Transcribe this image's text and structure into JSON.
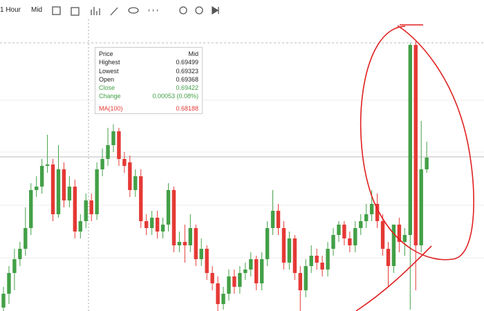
{
  "toolbar": {
    "interval": "1 Hour",
    "price_type": "Mid"
  },
  "tooltip": {
    "rows": [
      {
        "label": "Price",
        "value": "Mid"
      },
      {
        "label": "Highest",
        "value": "0.69499"
      },
      {
        "label": "Lowest",
        "value": "0.69323"
      },
      {
        "label": "Open",
        "value": "0.69368"
      },
      {
        "label": "Close",
        "value": "0.69422"
      },
      {
        "label": "Change",
        "value": "0.00053 (0.08%)"
      },
      {
        "label": "MA(100)",
        "value": "0.68188"
      }
    ]
  },
  "chart_data": {
    "type": "candlestick",
    "up_color": "#43a047",
    "down_color": "#e53935",
    "ylim": [
      0.69197,
      0.69612
    ],
    "open": [
      0.69202,
      0.69222,
      0.69252,
      0.69272,
      0.69287,
      0.69317,
      0.69372,
      0.69377,
      0.69407,
      0.69409,
      0.69337,
      0.69402,
      0.69357,
      0.69377,
      0.69312,
      0.69327,
      0.69357,
      0.69337,
      0.69402,
      0.69417,
      0.69437,
      0.69457,
      0.69417,
      0.69412,
      0.69372,
      0.69392,
      0.69327,
      0.69317,
      0.69332,
      0.69312,
      0.69322,
      0.69372,
      0.69292,
      0.69297,
      0.69292,
      0.69317,
      0.69272,
      0.69287,
      0.69252,
      0.69237,
      0.69207,
      0.69222,
      0.69247,
      0.69232,
      0.69252,
      0.69257,
      0.69272,
      0.69237,
      0.69272,
      0.69317,
      0.69342,
      0.69317,
      0.69267,
      0.69302,
      0.69252,
      0.69227,
      0.69262,
      0.69277,
      0.69267,
      0.69257,
      0.69287,
      0.69307,
      0.69322,
      0.69302,
      0.69292,
      0.69317,
      0.69327,
      0.69337,
      0.69352,
      0.69327,
      0.69287,
      0.69262,
      0.69322,
      0.69297,
      0.69307,
      0.69582,
      0.69292,
      0.69402
    ],
    "high": [
      0.69232,
      0.69262,
      0.69287,
      0.69297,
      0.69347,
      0.69382,
      0.69392,
      0.69417,
      0.69452,
      0.69417,
      0.69437,
      0.69412,
      0.69392,
      0.69387,
      0.69337,
      0.69367,
      0.69367,
      0.69412,
      0.69432,
      0.69462,
      0.69467,
      0.69462,
      0.69427,
      0.69422,
      0.69402,
      0.69402,
      0.69337,
      0.69342,
      0.69342,
      0.69332,
      0.69382,
      0.69377,
      0.69312,
      0.69322,
      0.69337,
      0.69322,
      0.69302,
      0.69292,
      0.69262,
      0.69247,
      0.69232,
      0.69257,
      0.69257,
      0.69262,
      0.69267,
      0.69282,
      0.69277,
      0.69282,
      0.69327,
      0.69372,
      0.69352,
      0.69327,
      0.69312,
      0.69307,
      0.69262,
      0.69272,
      0.69292,
      0.69287,
      0.69277,
      0.69297,
      0.69317,
      0.69327,
      0.69327,
      0.69312,
      0.69327,
      0.69337,
      0.69352,
      0.69372,
      0.69367,
      0.69337,
      0.69297,
      0.69322,
      0.69332,
      0.69317,
      0.69585,
      0.69587,
      0.69472,
      0.69442
    ],
    "low": [
      0.69197,
      0.69207,
      0.69227,
      0.69262,
      0.69277,
      0.69307,
      0.69362,
      0.69367,
      0.69397,
      0.69327,
      0.69332,
      0.69347,
      0.69347,
      0.69302,
      0.69302,
      0.69317,
      0.69327,
      0.69329,
      0.69392,
      0.69407,
      0.69427,
      0.69407,
      0.69397,
      0.69362,
      0.69362,
      0.69317,
      0.69307,
      0.69307,
      0.69302,
      0.69302,
      0.69312,
      0.69282,
      0.69282,
      0.69267,
      0.69282,
      0.69262,
      0.69262,
      0.69242,
      0.69227,
      0.69197,
      0.69199,
      0.69212,
      0.69222,
      0.69222,
      0.69242,
      0.69247,
      0.69227,
      0.69227,
      0.69262,
      0.69307,
      0.69307,
      0.69257,
      0.69257,
      0.69242,
      0.69197,
      0.69217,
      0.69252,
      0.69257,
      0.69247,
      0.69247,
      0.69277,
      0.69297,
      0.69292,
      0.69282,
      0.69282,
      0.69307,
      0.69317,
      0.69327,
      0.69317,
      0.69277,
      0.69232,
      0.69252,
      0.69282,
      0.69277,
      0.69199,
      0.69227,
      0.69282,
      0.69397
    ],
    "close": [
      0.69222,
      0.69252,
      0.69272,
      0.69287,
      0.69317,
      0.69372,
      0.69377,
      0.69407,
      0.69409,
      0.69337,
      0.69402,
      0.69357,
      0.69377,
      0.69312,
      0.69327,
      0.69357,
      0.69337,
      0.69402,
      0.69417,
      0.69437,
      0.69457,
      0.69417,
      0.69407,
      0.69372,
      0.69392,
      0.69327,
      0.69317,
      0.69332,
      0.69312,
      0.69322,
      0.69372,
      0.69292,
      0.69297,
      0.69292,
      0.69317,
      0.69272,
      0.69287,
      0.69252,
      0.69237,
      0.69207,
      0.69222,
      0.69247,
      0.69232,
      0.69252,
      0.69257,
      0.69272,
      0.69237,
      0.69272,
      0.69317,
      0.69342,
      0.69317,
      0.69267,
      0.69302,
      0.69252,
      0.69227,
      0.69262,
      0.69277,
      0.69267,
      0.69257,
      0.69287,
      0.69307,
      0.69322,
      0.69302,
      0.69292,
      0.69317,
      0.69327,
      0.69337,
      0.69352,
      0.69327,
      0.69287,
      0.69262,
      0.69322,
      0.69297,
      0.69307,
      0.69582,
      0.69292,
      0.69402,
      0.69419
    ]
  }
}
